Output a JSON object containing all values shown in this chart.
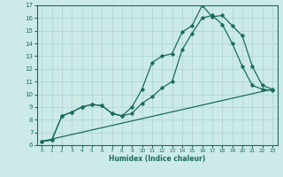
{
  "xlabel": "Humidex (Indice chaleur)",
  "xlim": [
    -0.5,
    23.5
  ],
  "ylim": [
    6,
    17
  ],
  "xticks": [
    0,
    1,
    2,
    3,
    4,
    5,
    6,
    7,
    8,
    9,
    10,
    11,
    12,
    13,
    14,
    15,
    16,
    17,
    18,
    19,
    20,
    21,
    22,
    23
  ],
  "yticks": [
    6,
    7,
    8,
    9,
    10,
    11,
    12,
    13,
    14,
    15,
    16,
    17
  ],
  "bg_color": "#cceae8",
  "line_color": "#1a6b5e",
  "grid_color": "#aad4d0",
  "line1": {
    "x": [
      0,
      1,
      2,
      3,
      4,
      5,
      6,
      7,
      8,
      9,
      10,
      11,
      12,
      13,
      14,
      15,
      16,
      17,
      18,
      19,
      20,
      21,
      22,
      23
    ],
    "y": [
      6.3,
      6.4,
      8.3,
      8.6,
      9.0,
      9.2,
      9.1,
      8.5,
      8.3,
      9.0,
      10.4,
      12.5,
      13.0,
      13.2,
      14.9,
      15.4,
      17.0,
      16.1,
      16.2,
      15.4,
      14.6,
      12.2,
      10.7,
      10.4
    ]
  },
  "line2": {
    "x": [
      0,
      1,
      2,
      3,
      4,
      5,
      6,
      7,
      8,
      9,
      10,
      11,
      12,
      13,
      14,
      15,
      16,
      17,
      18,
      19,
      20,
      21,
      22,
      23
    ],
    "y": [
      6.3,
      6.4,
      8.3,
      8.6,
      9.0,
      9.2,
      9.1,
      8.5,
      8.3,
      8.5,
      9.3,
      9.8,
      10.5,
      11.0,
      13.5,
      14.8,
      16.0,
      16.2,
      15.5,
      14.0,
      12.2,
      10.7,
      10.4,
      10.3
    ]
  },
  "line3": {
    "x": [
      0,
      23
    ],
    "y": [
      6.3,
      10.4
    ]
  }
}
